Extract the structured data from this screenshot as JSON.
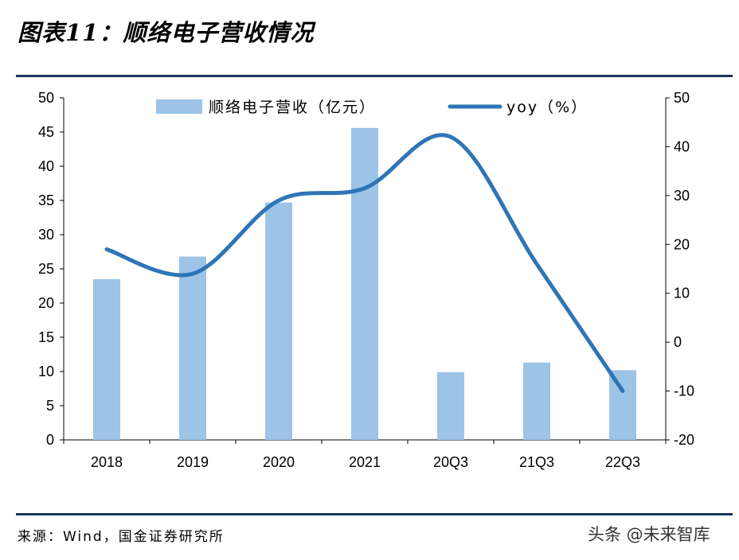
{
  "header": {
    "title": "图表11：顺络电子营收情况"
  },
  "footer": {
    "source": "来源：Wind，国金证券研究所",
    "watermark": "头条 @未来智库"
  },
  "chart_data": {
    "type": "bar+line",
    "categories": [
      "2018",
      "2019",
      "2020",
      "2021",
      "20Q3",
      "21Q3",
      "22Q3"
    ],
    "series": [
      {
        "name": "顺络电子营收（亿元）",
        "type": "bar",
        "axis": "left",
        "values": [
          23.5,
          26.8,
          34.7,
          45.6,
          9.9,
          11.3,
          10.2
        ],
        "color": "#9dc3e6"
      },
      {
        "name": "yoy（%）",
        "type": "line",
        "axis": "right",
        "values": [
          19,
          14,
          29,
          31.5,
          42,
          16,
          -10
        ],
        "color": "#2e75b6"
      }
    ],
    "y_left": {
      "min": 0,
      "max": 50,
      "ticks": [
        "0",
        "5",
        "10",
        "15",
        "20",
        "25",
        "30",
        "35",
        "40",
        "45",
        "50"
      ]
    },
    "y_right": {
      "min": -20,
      "max": 50,
      "ticks": [
        "-20",
        "-10",
        "0",
        "10",
        "20",
        "30",
        "40",
        "50"
      ]
    },
    "legend": {
      "position": "top"
    },
    "grid": false
  }
}
